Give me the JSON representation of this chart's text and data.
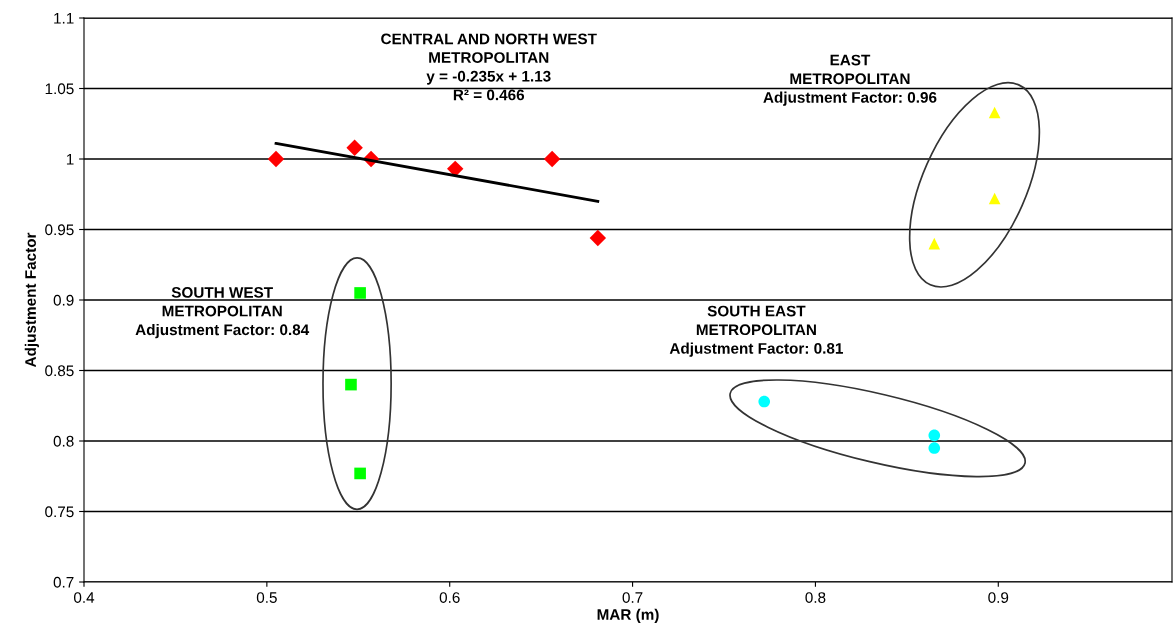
{
  "chart_data": {
    "type": "scatter",
    "xlabel": "MAR (m)",
    "ylabel": "Adjustment Factor",
    "series": [
      {
        "color": "#ff0000",
        "marker": "diamond",
        "x": [
          0.505,
          0.548,
          0.557,
          0.603,
          0.656,
          0.681
        ],
        "values": [
          1.0,
          1.008,
          1.0,
          0.993,
          1.0,
          0.944
        ]
      },
      {
        "type": "line",
        "color": "#000000",
        "marker": "none",
        "x": [
          0.505,
          0.681
        ],
        "values": [
          1.011,
          0.97
        ]
      },
      {
        "color": "#00ff00",
        "marker": "square",
        "x": [
          0.551,
          0.546,
          0.551
        ],
        "values": [
          0.905,
          0.84,
          0.777
        ]
      },
      {
        "color": "#00ffff",
        "marker": "circle",
        "x": [
          0.772,
          0.865,
          0.865
        ],
        "values": [
          0.828,
          0.804,
          0.795
        ]
      },
      {
        "color": "#ffff00",
        "marker": "triangle",
        "x": [
          0.898,
          0.898,
          0.865
        ],
        "values": [
          1.033,
          0.972,
          0.94
        ]
      }
    ],
    "xlim": [
      0.4,
      0.995
    ],
    "xticks": [
      0.4,
      0.5,
      0.6,
      0.7,
      0.8,
      0.9
    ],
    "ylim": [
      0.7,
      1.1
    ],
    "yticks": [
      0.7,
      0.75,
      0.8,
      0.85,
      0.9,
      0.95,
      1,
      1.05,
      1.1
    ],
    "grid": "y",
    "annotations": [
      "CENTRAL AND NORTH WEST\nMETROPOLITAN\ny = -0.235x + 1.13\nR² = 0.466",
      "EAST\nMETROPOLITAN\nAdjustment Factor: 0.96",
      "SOUTH WEST\nMETROPOLITAN\nAdjustment Factor: 0.84",
      "SOUTH EAST\nMETROPOLITAN\nAdjustment Factor: 0.81"
    ]
  }
}
